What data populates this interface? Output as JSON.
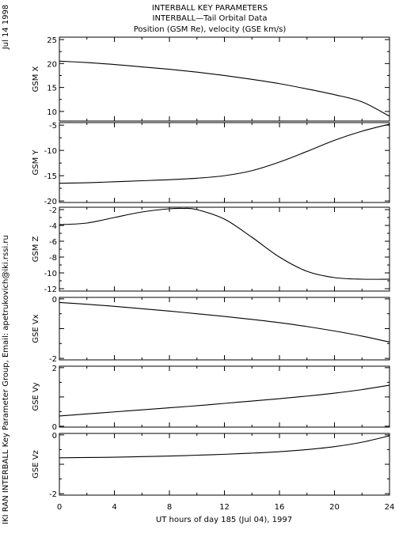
{
  "header": {
    "title_line1": "INTERBALL KEY PARAMETERS",
    "title_line2": "INTERBALL—Tail Orbital Data",
    "title_line3": "Position (GSM Re), velocity (GSE km/s)"
  },
  "side": {
    "date": "Jul 14 1998",
    "credit": "IKI RAN INTERBALL Key Parameter Group, Email: apetrukovich@iki.rssi.ru"
  },
  "colors": {
    "background": "#ffffff",
    "ink": "#000000"
  },
  "chart_data": [
    {
      "type": "line",
      "ylabel": "GSM X",
      "ylim": [
        8,
        25.5
      ],
      "yticks": [
        10,
        15,
        20,
        25
      ],
      "ytick_labels": [
        "10",
        "15",
        "20",
        "25"
      ],
      "x": [
        0,
        2,
        4,
        6,
        8,
        10,
        12,
        14,
        16,
        18,
        20,
        22,
        24
      ],
      "values": [
        20.5,
        20.2,
        19.8,
        19.3,
        18.8,
        18.2,
        17.5,
        16.7,
        15.8,
        14.7,
        13.5,
        12.0,
        9.0
      ]
    },
    {
      "type": "line",
      "ylabel": "GSM Y",
      "ylim": [
        -20.3,
        -4.5
      ],
      "yticks": [
        -20,
        -15,
        -10,
        -5
      ],
      "ytick_labels": [
        "-20",
        "-15",
        "-10",
        "-5"
      ],
      "x": [
        0,
        2,
        4,
        6,
        8,
        10,
        12,
        14,
        16,
        18,
        20,
        22,
        24
      ],
      "values": [
        -16.5,
        -16.4,
        -16.2,
        -16.0,
        -15.8,
        -15.5,
        -15.0,
        -14.0,
        -12.3,
        -10.2,
        -8.0,
        -6.2,
        -4.8
      ]
    },
    {
      "type": "line",
      "ylabel": "GSM Z",
      "ylim": [
        -12.3,
        -1.7
      ],
      "yticks": [
        -12,
        -10,
        -8,
        -6,
        -4,
        -2
      ],
      "ytick_labels": [
        "-12",
        "-10",
        "-8",
        "-6",
        "-4",
        "-2"
      ],
      "x": [
        0,
        2,
        4,
        6,
        8,
        9,
        10,
        12,
        14,
        16,
        18,
        20,
        22,
        24
      ],
      "values": [
        -3.9,
        -3.7,
        -3.0,
        -2.3,
        -1.9,
        -1.85,
        -2.0,
        -3.2,
        -5.5,
        -8.0,
        -9.8,
        -10.6,
        -10.8,
        -10.8
      ]
    },
    {
      "type": "line",
      "ylabel": "GSE Vx",
      "ylim": [
        -2.05,
        0.05
      ],
      "yticks": [
        -2,
        -1,
        0
      ],
      "ytick_labels": [
        "-2",
        "",
        "0"
      ],
      "x": [
        0,
        2,
        4,
        6,
        8,
        10,
        12,
        14,
        16,
        18,
        20,
        22,
        24
      ],
      "values": [
        -0.12,
        -0.18,
        -0.25,
        -0.33,
        -0.41,
        -0.5,
        -0.59,
        -0.69,
        -0.8,
        -0.93,
        -1.08,
        -1.25,
        -1.45
      ]
    },
    {
      "type": "line",
      "ylabel": "GSE Vy",
      "ylim": [
        -0.03,
        2.05
      ],
      "yticks": [
        0,
        1,
        2
      ],
      "ytick_labels": [
        "0",
        "",
        "2"
      ],
      "x": [
        0,
        2,
        4,
        6,
        8,
        10,
        12,
        14,
        16,
        18,
        20,
        22,
        24
      ],
      "values": [
        0.35,
        0.42,
        0.49,
        0.56,
        0.63,
        0.7,
        0.78,
        0.86,
        0.94,
        1.03,
        1.13,
        1.25,
        1.4
      ]
    },
    {
      "type": "line",
      "ylabel": "GSE Vz",
      "ylim": [
        -2.05,
        0.05
      ],
      "yticks": [
        -2,
        -1,
        0
      ],
      "ytick_labels": [
        "-2",
        "",
        "0"
      ],
      "x": [
        0,
        2,
        4,
        6,
        8,
        10,
        12,
        14,
        16,
        18,
        20,
        22,
        24
      ],
      "values": [
        -0.78,
        -0.77,
        -0.76,
        -0.74,
        -0.72,
        -0.69,
        -0.66,
        -0.62,
        -0.57,
        -0.5,
        -0.4,
        -0.25,
        -0.03
      ]
    }
  ],
  "xaxis": {
    "xlim": [
      0,
      24
    ],
    "ticks": [
      0,
      4,
      8,
      12,
      16,
      20,
      24
    ],
    "tick_labels": [
      "0",
      "4",
      "8",
      "12",
      "16",
      "20",
      "24"
    ],
    "minor_ticks": [
      2,
      6,
      10,
      14,
      18,
      22
    ],
    "xlabel": "UT hours of day 185 (Jul 04), 1997"
  }
}
